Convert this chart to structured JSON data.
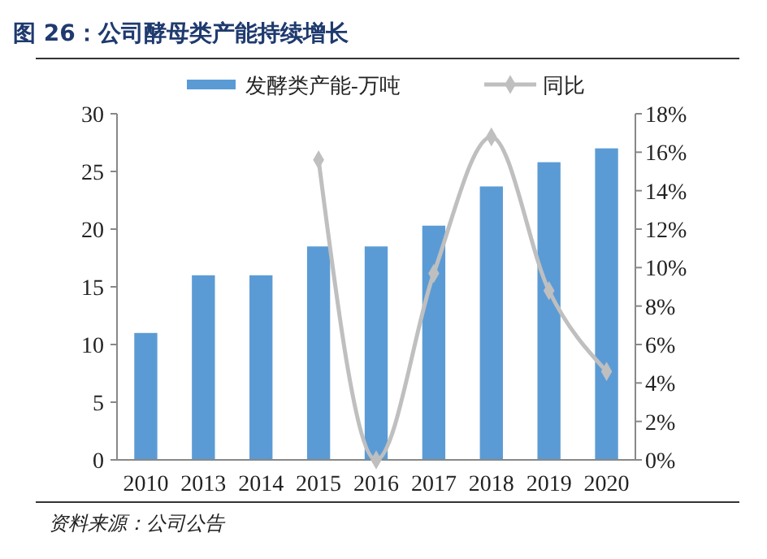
{
  "chart_data": {
    "type": "bar",
    "title": "图 26：公司酵母类产能持续增长",
    "annotations": [
      "资料来源：公司公告"
    ],
    "categories": [
      "2010",
      "2013",
      "2014",
      "2015",
      "2016",
      "2017",
      "2018",
      "2019",
      "2020"
    ],
    "series": [
      {
        "name": "发酵类产能-万吨",
        "color": "#5b9bd5",
        "values": [
          11,
          16,
          16,
          18.5,
          18.5,
          20.3,
          23.7,
          25.8,
          27
        ]
      },
      {
        "name": "同比",
        "type": "line",
        "axis": "y2",
        "color": "#bfbfbf",
        "marker": "diamond",
        "values": [
          null,
          null,
          null,
          15.6,
          0,
          9.7,
          16.8,
          8.8,
          4.6
        ]
      }
    ],
    "ylim": [
      0,
      30
    ],
    "yticks": [
      0,
      5,
      10,
      15,
      20,
      25,
      30
    ],
    "y2lim": [
      0,
      18
    ],
    "y2ticks": [
      {
        "value": 0,
        "label": "0%"
      },
      {
        "value": 2,
        "label": "2%"
      },
      {
        "value": 4,
        "label": "4%"
      },
      {
        "value": 6,
        "label": "6%"
      },
      {
        "value": 8,
        "label": "8%"
      },
      {
        "value": 10,
        "label": "10%"
      },
      {
        "value": 12,
        "label": "12%"
      },
      {
        "value": 14,
        "label": "14%"
      },
      {
        "value": 16,
        "label": "16%"
      },
      {
        "value": 18,
        "label": "18%"
      }
    ],
    "legend": "top",
    "grid": false
  }
}
